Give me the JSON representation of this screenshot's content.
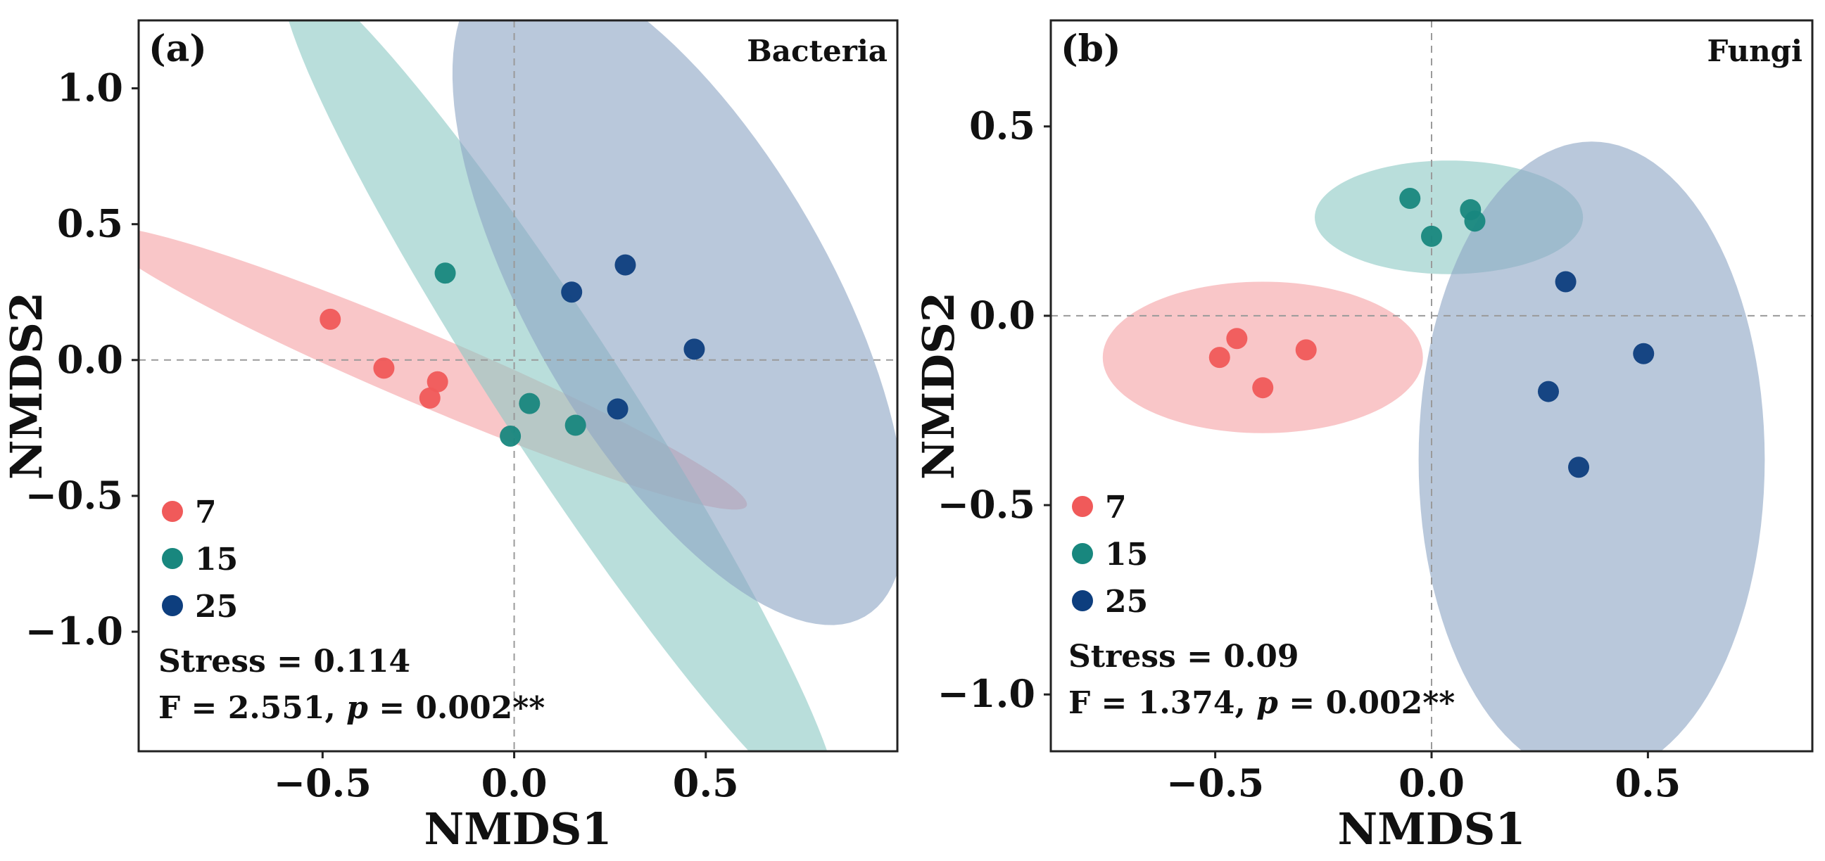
{
  "chart_data": [
    {
      "type": "scatter",
      "panel_label": "(a)",
      "group_title": "Bacteria",
      "xlabel": "NMDS1",
      "ylabel": "NMDS2",
      "xlim": [
        -0.98,
        1.0
      ],
      "ylim": [
        -1.44,
        1.25
      ],
      "xticks": [
        -0.5,
        0.0,
        0.5
      ],
      "xtick_labels": [
        "−0.5",
        "0.0",
        "0.5"
      ],
      "yticks": [
        -1.0,
        -0.5,
        0.0,
        0.5,
        1.0
      ],
      "ytick_labels": [
        "−1.0",
        "−0.5",
        "0.0",
        "0.5",
        "1.0"
      ],
      "reference_lines": {
        "x": 0,
        "y": 0
      },
      "grid": false,
      "legend_position": "bottom-left",
      "stress_text": "Stress = 0.114",
      "f_text": "F = 2.551, ",
      "p_symbol": "p",
      "p_text": " = 0.002**",
      "series": [
        {
          "name": "7",
          "color": "#f05a5a",
          "ellipse_color": "#f5a3a6",
          "x": [
            -0.48,
            -0.34,
            -0.2,
            -0.22
          ],
          "y": [
            0.15,
            -0.03,
            -0.08,
            -0.14
          ],
          "ellipse": {
            "cx": -0.24,
            "cy": -0.03,
            "rx": 0.92,
            "ry": 0.13,
            "angle_deg": -23
          }
        },
        {
          "name": "15",
          "color": "#18877e",
          "ellipse_color": "#8ec9c5",
          "x": [
            -0.18,
            0.04,
            0.16,
            -0.01
          ],
          "y": [
            0.32,
            -0.16,
            -0.24,
            -0.28
          ],
          "ellipse": {
            "cx": 0.12,
            "cy": -0.12,
            "rx": 1.31,
            "ry": 0.23,
            "angle_deg": -57
          }
        },
        {
          "name": "25",
          "color": "#0d3e7e",
          "ellipse_color": "#8ea6c5",
          "x": [
            0.15,
            0.29,
            0.47,
            0.27
          ],
          "y": [
            0.25,
            0.35,
            0.04,
            -0.18
          ],
          "ellipse": {
            "cx": 0.43,
            "cy": 0.24,
            "rx": 0.97,
            "ry": 0.55,
            "angle_deg": -60
          }
        }
      ]
    },
    {
      "type": "scatter",
      "panel_label": "(b)",
      "group_title": "Fungi",
      "xlabel": "NMDS1",
      "ylabel": "NMDS2",
      "xlim": [
        -0.88,
        0.88
      ],
      "ylim": [
        -1.15,
        0.78
      ],
      "xticks": [
        -0.5,
        0.0,
        0.5
      ],
      "xtick_labels": [
        "−0.5",
        "0.0",
        "0.5"
      ],
      "yticks": [
        -1.0,
        -0.5,
        0.0,
        0.5
      ],
      "ytick_labels": [
        "−1.0",
        "−0.5",
        "0.0",
        "0.5"
      ],
      "reference_lines": {
        "x": 0,
        "y": 0
      },
      "grid": false,
      "legend_position": "bottom-left",
      "stress_text": "Stress = 0.09",
      "f_text": "F = 1.374, ",
      "p_symbol": "p",
      "p_text": " = 0.002**",
      "series": [
        {
          "name": "7",
          "color": "#f05a5a",
          "ellipse_color": "#f5a3a6",
          "x": [
            -0.49,
            -0.45,
            -0.39,
            -0.29
          ],
          "y": [
            -0.11,
            -0.06,
            -0.19,
            -0.09
          ],
          "ellipse": {
            "cx": -0.39,
            "cy": -0.11,
            "rx": 0.37,
            "ry": 0.2,
            "angle_deg": 0
          }
        },
        {
          "name": "15",
          "color": "#18877e",
          "ellipse_color": "#8ec9c5",
          "x": [
            -0.05,
            0.0,
            0.09,
            0.1
          ],
          "y": [
            0.31,
            0.21,
            0.28,
            0.25
          ],
          "ellipse": {
            "cx": 0.04,
            "cy": 0.26,
            "rx": 0.31,
            "ry": 0.15,
            "angle_deg": 0
          }
        },
        {
          "name": "25",
          "color": "#0d3e7e",
          "ellipse_color": "#8ea6c5",
          "x": [
            0.31,
            0.49,
            0.27,
            0.34
          ],
          "y": [
            0.09,
            -0.1,
            -0.2,
            -0.4
          ],
          "ellipse": {
            "cx": 0.37,
            "cy": -0.38,
            "rx": 0.4,
            "ry": 0.84,
            "angle_deg": 0
          }
        }
      ]
    }
  ]
}
